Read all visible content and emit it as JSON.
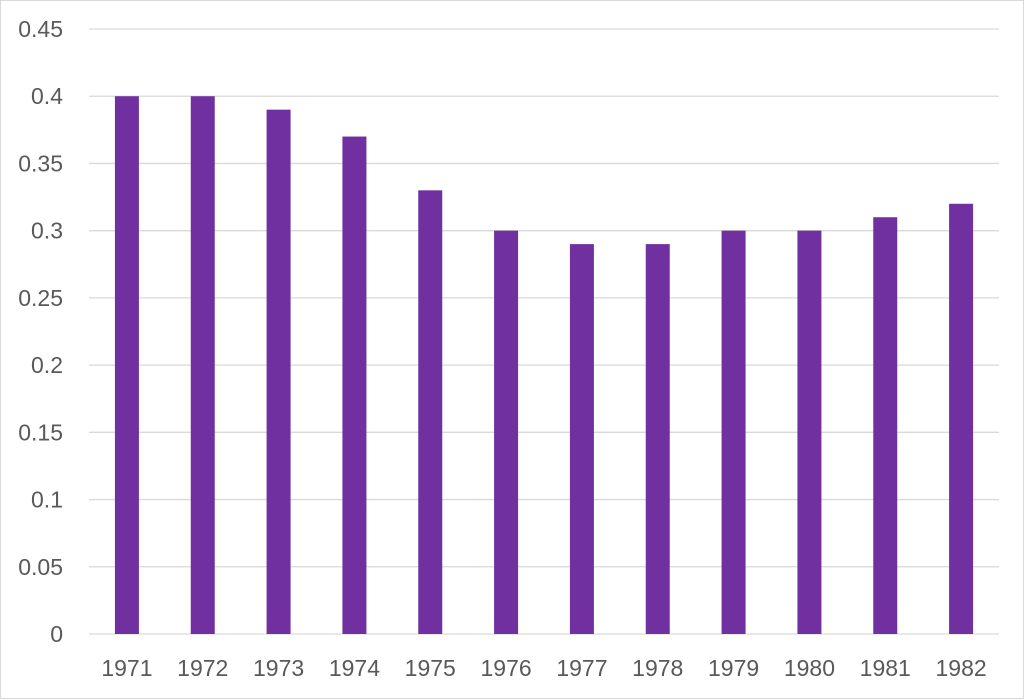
{
  "chart_data": {
    "type": "bar",
    "title": "",
    "xlabel": "",
    "ylabel": "",
    "categories": [
      "1971",
      "1972",
      "1973",
      "1974",
      "1975",
      "1976",
      "1977",
      "1978",
      "1979",
      "1980",
      "1981",
      "1982"
    ],
    "values": [
      0.4,
      0.4,
      0.39,
      0.37,
      0.33,
      0.3,
      0.29,
      0.29,
      0.3,
      0.3,
      0.31,
      0.32
    ],
    "ylim": [
      0,
      0.45
    ],
    "yticks": [
      "0",
      "0.05",
      "0.1",
      "0.15",
      "0.2",
      "0.25",
      "0.3",
      "0.35",
      "0.4",
      "0.45"
    ],
    "grid": true,
    "legend": "none",
    "colors": {
      "bar": "#7030a0",
      "grid": "#d9d9d9",
      "text": "#595959"
    }
  }
}
